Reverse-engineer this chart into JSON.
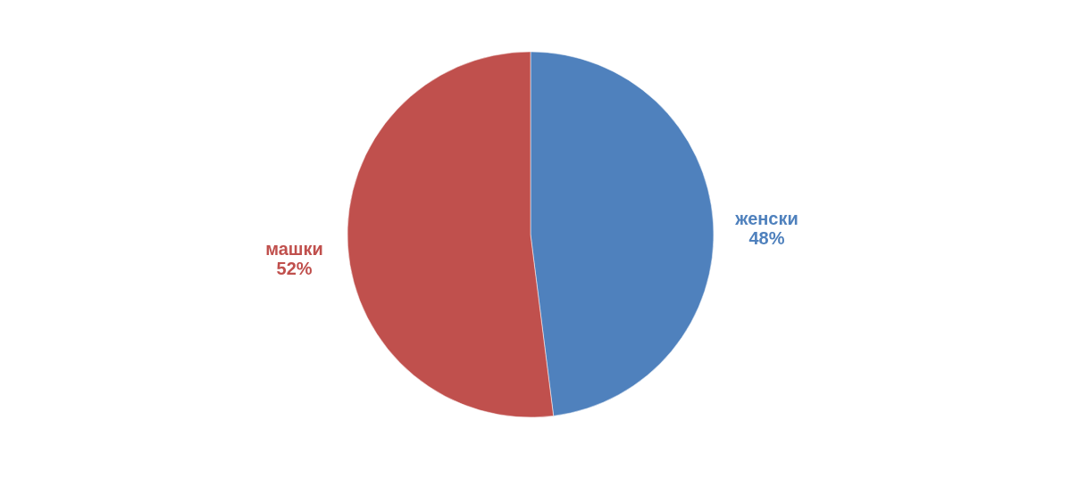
{
  "chart_data": {
    "type": "pie",
    "categories": [
      "женски",
      "машки"
    ],
    "values": [
      48,
      52
    ],
    "colors": [
      "#4f81bd",
      "#c0504d"
    ],
    "value_labels": [
      "48%",
      "52%"
    ],
    "legend": false
  }
}
